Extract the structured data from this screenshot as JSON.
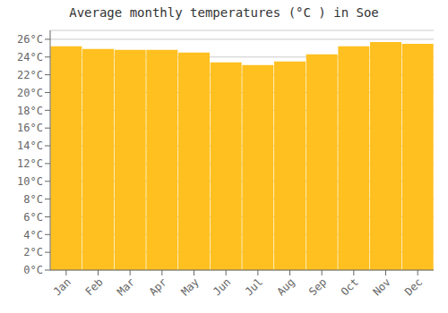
{
  "chart_data": {
    "type": "bar",
    "title": "Average monthly temperatures (°C ) in Soe",
    "categories": [
      "Jan",
      "Feb",
      "Mar",
      "Apr",
      "May",
      "Jun",
      "Jul",
      "Aug",
      "Sep",
      "Oct",
      "Nov",
      "Dec"
    ],
    "values": [
      25.2,
      24.9,
      24.8,
      24.8,
      24.5,
      23.4,
      23.1,
      23.5,
      24.3,
      25.2,
      25.7,
      25.5
    ],
    "color": "#FFC020",
    "ylim": [
      0,
      27
    ],
    "yticks": [
      {
        "value": 0,
        "label": "0°C"
      },
      {
        "value": 2,
        "label": "2°C"
      },
      {
        "value": 4,
        "label": "4°C"
      },
      {
        "value": 6,
        "label": "6°C"
      },
      {
        "value": 8,
        "label": "8°C"
      },
      {
        "value": 10,
        "label": "10°C"
      },
      {
        "value": 12,
        "label": "12°C"
      },
      {
        "value": 14,
        "label": "14°C"
      },
      {
        "value": 16,
        "label": "16°C"
      },
      {
        "value": 18,
        "label": "18°C"
      },
      {
        "value": 20,
        "label": "20°C"
      },
      {
        "value": 22,
        "label": "22°C"
      },
      {
        "value": 24,
        "label": "24°C"
      },
      {
        "value": 26,
        "label": "26°C"
      }
    ],
    "grid": true
  }
}
